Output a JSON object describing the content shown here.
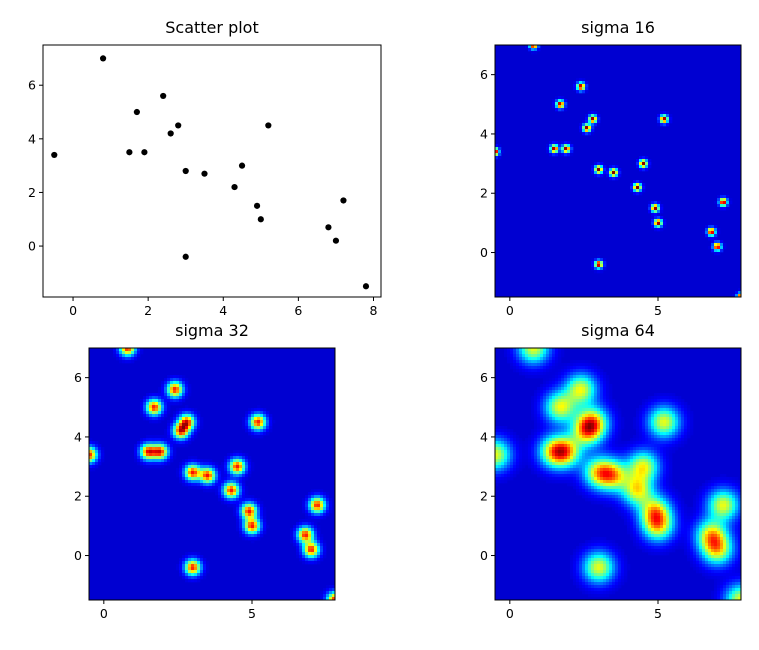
{
  "chart_data": [
    {
      "type": "scatter",
      "title": "Scatter plot",
      "xlabel": "",
      "ylabel": "",
      "xlim": [
        -0.8,
        8.2
      ],
      "ylim": [
        -1.9,
        7.5
      ],
      "xticks": [
        0,
        2,
        4,
        6,
        8
      ],
      "yticks": [
        0,
        2,
        4,
        6
      ],
      "grid": false,
      "marker_color": "#000000",
      "points": [
        {
          "x": -0.5,
          "y": 3.4
        },
        {
          "x": 0.8,
          "y": 7.0
        },
        {
          "x": 1.5,
          "y": 3.5
        },
        {
          "x": 1.7,
          "y": 5.0
        },
        {
          "x": 1.9,
          "y": 3.5
        },
        {
          "x": 2.4,
          "y": 5.6
        },
        {
          "x": 2.6,
          "y": 4.2
        },
        {
          "x": 2.8,
          "y": 4.5
        },
        {
          "x": 3.0,
          "y": 2.8
        },
        {
          "x": 3.0,
          "y": -0.4
        },
        {
          "x": 3.5,
          "y": 2.7
        },
        {
          "x": 4.3,
          "y": 2.2
        },
        {
          "x": 4.5,
          "y": 3.0
        },
        {
          "x": 4.9,
          "y": 1.5
        },
        {
          "x": 5.0,
          "y": 1.0
        },
        {
          "x": 5.2,
          "y": 4.5
        },
        {
          "x": 6.8,
          "y": 0.7
        },
        {
          "x": 7.0,
          "y": 0.2
        },
        {
          "x": 7.2,
          "y": 1.7
        },
        {
          "x": 7.8,
          "y": -1.5
        }
      ]
    },
    {
      "type": "heatmap",
      "title": "sigma 16",
      "sigma": 16,
      "colormap": "jet",
      "xlim": [
        -0.5,
        7.8
      ],
      "ylim": [
        -1.5,
        7.0
      ],
      "xticks": [
        0,
        5
      ],
      "yticks": [
        0,
        2,
        4,
        6
      ]
    },
    {
      "type": "heatmap",
      "title": "sigma 32",
      "sigma": 32,
      "colormap": "jet",
      "xlim": [
        -0.5,
        7.8
      ],
      "ylim": [
        -1.5,
        7.0
      ],
      "xticks": [
        0,
        5
      ],
      "yticks": [
        0,
        2,
        4,
        6
      ]
    },
    {
      "type": "heatmap",
      "title": "sigma 64",
      "sigma": 64,
      "colormap": "jet",
      "xlim": [
        -0.5,
        7.8
      ],
      "ylim": [
        -1.5,
        7.0
      ],
      "xticks": [
        0,
        5
      ],
      "yticks": [
        0,
        2,
        4,
        6
      ]
    }
  ]
}
